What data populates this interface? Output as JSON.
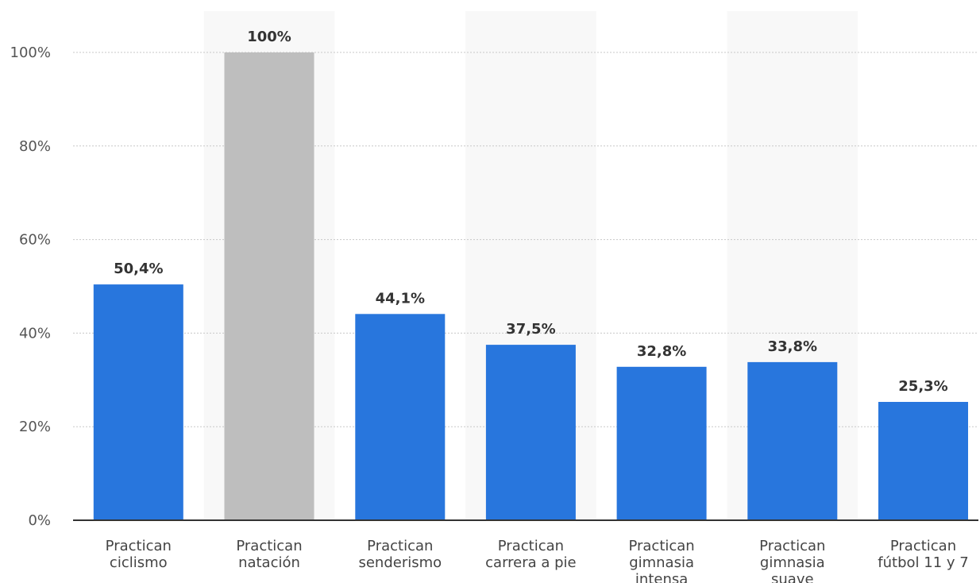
{
  "chart_data": {
    "type": "bar",
    "categories": [
      [
        "Practican",
        "ciclismo"
      ],
      [
        "Practican",
        "natación"
      ],
      [
        "Practican",
        "senderismo"
      ],
      [
        "Practican",
        "carrera a pie"
      ],
      [
        "Practican",
        "gimnasia",
        "intensa"
      ],
      [
        "Practican",
        "gimnasia",
        "suave"
      ],
      [
        "Practican",
        "fútbol 11 y 7"
      ]
    ],
    "values": [
      50.4,
      100,
      44.1,
      37.5,
      32.8,
      33.8,
      25.3
    ],
    "data_labels": [
      "50,4%",
      "100%",
      "44,1%",
      "37,5%",
      "32,8%",
      "33,8%",
      "25,3%"
    ],
    "highlighted_index": 1,
    "y_ticks": [
      0,
      20,
      40,
      60,
      80,
      100
    ],
    "y_tick_labels": [
      "0%",
      "20%",
      "40%",
      "60%",
      "80%",
      "100%"
    ],
    "ylim": [
      0,
      100
    ],
    "grid": true,
    "title": "",
    "xlabel": "",
    "ylabel": "",
    "colors": {
      "bar": "#2876dd",
      "highlight": "#bebebe",
      "band": "#f8f8f8"
    }
  }
}
